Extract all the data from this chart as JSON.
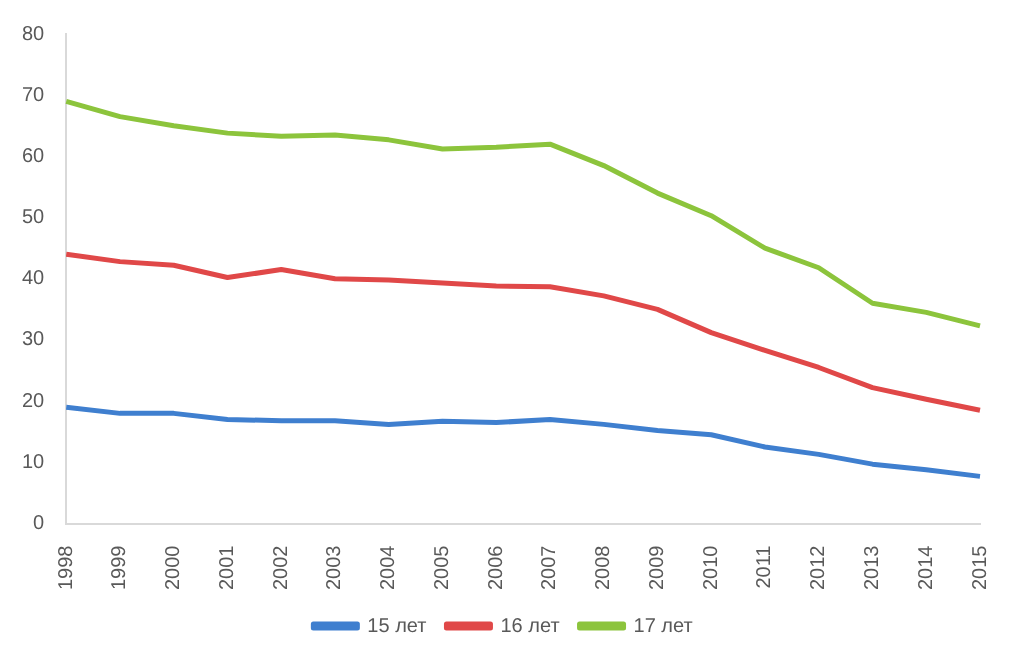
{
  "chart_data": {
    "type": "line",
    "categories": [
      "1998",
      "1999",
      "2000",
      "2001",
      "2002",
      "2003",
      "2004",
      "2005",
      "2006",
      "2007",
      "2008",
      "2009",
      "2010",
      "2011",
      "2012",
      "2013",
      "2014",
      "2015"
    ],
    "series": [
      {
        "name": "15 лет",
        "color": "#3f7fcf",
        "values": [
          19,
          18,
          18,
          17,
          16.8,
          16.8,
          16.2,
          16.7,
          16.5,
          17,
          16.2,
          15.2,
          14.5,
          12.5,
          11.3,
          9.7,
          8.8,
          7.7
        ]
      },
      {
        "name": "16 лет",
        "color": "#e04848",
        "values": [
          44,
          42.8,
          42.2,
          40.2,
          41.5,
          40,
          39.8,
          39.3,
          38.8,
          38.7,
          37.2,
          35,
          31.2,
          28.3,
          25.5,
          22.2,
          20.3,
          18.5
        ]
      },
      {
        "name": "17 лет",
        "color": "#8cc43c",
        "values": [
          69,
          66.5,
          65,
          63.8,
          63.3,
          63.5,
          62.7,
          61.2,
          61.5,
          62,
          58.5,
          54,
          50.3,
          45,
          41.8,
          36,
          34.5,
          32.3
        ]
      }
    ],
    "ylim": [
      0,
      80
    ],
    "yticks": [
      0,
      10,
      20,
      30,
      40,
      50,
      60,
      70,
      80
    ],
    "grid": false,
    "legend": "bottom",
    "marker": "none",
    "line_style": "solid"
  }
}
